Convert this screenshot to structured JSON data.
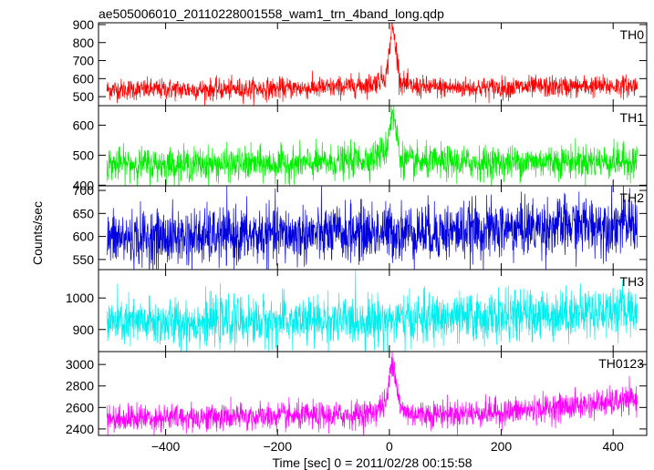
{
  "chart_data": {
    "type": "line",
    "title": "ae505006010_20110228001558_wam1_trn_4band_long.qdp",
    "xlabel": "Time [sec] 0 = 2011/02/28 00:15:58",
    "ylabel": "Counts/sec",
    "xlim": [
      -520,
      460
    ],
    "xticks": [
      -400,
      -200,
      0,
      200,
      400
    ],
    "xtick_labels": [
      "−400",
      "−200",
      "0",
      "200",
      "400"
    ],
    "x_start": -505,
    "x_end": 443,
    "grid": false,
    "panels": [
      {
        "name": "TH0",
        "color": "#ff0000",
        "ylim": [
          450,
          910
        ],
        "yticks": [
          500,
          600,
          700,
          800,
          900
        ],
        "series": [
          {
            "x": -505,
            "y": 540
          },
          {
            "x": -400,
            "y": 540
          },
          {
            "x": -300,
            "y": 540
          },
          {
            "x": -200,
            "y": 545
          },
          {
            "x": -100,
            "y": 550
          },
          {
            "x": -30,
            "y": 570
          },
          {
            "x": -5,
            "y": 620
          },
          {
            "x": 0,
            "y": 760
          },
          {
            "x": 5,
            "y": 900
          },
          {
            "x": 12,
            "y": 760
          },
          {
            "x": 20,
            "y": 580
          },
          {
            "x": 40,
            "y": 555
          },
          {
            "x": 100,
            "y": 550
          },
          {
            "x": 200,
            "y": 550
          },
          {
            "x": 300,
            "y": 555
          },
          {
            "x": 443,
            "y": 560
          }
        ]
      },
      {
        "name": "TH1",
        "color": "#00ee00",
        "ylim": [
          398,
          665
        ],
        "yticks": [
          400,
          500,
          600
        ],
        "series": [
          {
            "x": -505,
            "y": 470
          },
          {
            "x": -400,
            "y": 470
          },
          {
            "x": -300,
            "y": 470
          },
          {
            "x": -200,
            "y": 470
          },
          {
            "x": -100,
            "y": 475
          },
          {
            "x": -30,
            "y": 490
          },
          {
            "x": -5,
            "y": 520
          },
          {
            "x": 0,
            "y": 590
          },
          {
            "x": 5,
            "y": 650
          },
          {
            "x": 12,
            "y": 580
          },
          {
            "x": 20,
            "y": 490
          },
          {
            "x": 40,
            "y": 475
          },
          {
            "x": 100,
            "y": 475
          },
          {
            "x": 200,
            "y": 475
          },
          {
            "x": 300,
            "y": 480
          },
          {
            "x": 443,
            "y": 480
          }
        ]
      },
      {
        "name": "TH2",
        "color": "#0000dd",
        "ylim": [
          528,
          710
        ],
        "yticks": [
          550,
          600,
          650,
          700
        ],
        "series": [
          {
            "x": -505,
            "y": 595
          },
          {
            "x": -400,
            "y": 597
          },
          {
            "x": -300,
            "y": 600
          },
          {
            "x": -200,
            "y": 603
          },
          {
            "x": -100,
            "y": 605
          },
          {
            "x": 0,
            "y": 610
          },
          {
            "x": 100,
            "y": 610
          },
          {
            "x": 200,
            "y": 615
          },
          {
            "x": 300,
            "y": 622
          },
          {
            "x": 443,
            "y": 628
          }
        ]
      },
      {
        "name": "TH3",
        "color": "#00eeee",
        "ylim": [
          830,
          1090
        ],
        "yticks": [
          900,
          1000
        ],
        "series": [
          {
            "x": -505,
            "y": 920
          },
          {
            "x": -400,
            "y": 922
          },
          {
            "x": -300,
            "y": 925
          },
          {
            "x": -200,
            "y": 925
          },
          {
            "x": -100,
            "y": 927
          },
          {
            "x": 0,
            "y": 930
          },
          {
            "x": 100,
            "y": 935
          },
          {
            "x": 200,
            "y": 940
          },
          {
            "x": 300,
            "y": 950
          },
          {
            "x": 443,
            "y": 965
          }
        ]
      },
      {
        "name": "TH0123",
        "color": "#ff00ff",
        "ylim": [
          2340,
          3120
        ],
        "yticks": [
          2400,
          2600,
          2800,
          3000
        ],
        "series": [
          {
            "x": -505,
            "y": 2500
          },
          {
            "x": -400,
            "y": 2505
          },
          {
            "x": -300,
            "y": 2510
          },
          {
            "x": -200,
            "y": 2515
          },
          {
            "x": -100,
            "y": 2520
          },
          {
            "x": -30,
            "y": 2550
          },
          {
            "x": -5,
            "y": 2650
          },
          {
            "x": 0,
            "y": 2850
          },
          {
            "x": 5,
            "y": 3090
          },
          {
            "x": 12,
            "y": 2850
          },
          {
            "x": 20,
            "y": 2580
          },
          {
            "x": 40,
            "y": 2540
          },
          {
            "x": 100,
            "y": 2540
          },
          {
            "x": 200,
            "y": 2555
          },
          {
            "x": 300,
            "y": 2600
          },
          {
            "x": 443,
            "y": 2670
          }
        ]
      }
    ]
  }
}
